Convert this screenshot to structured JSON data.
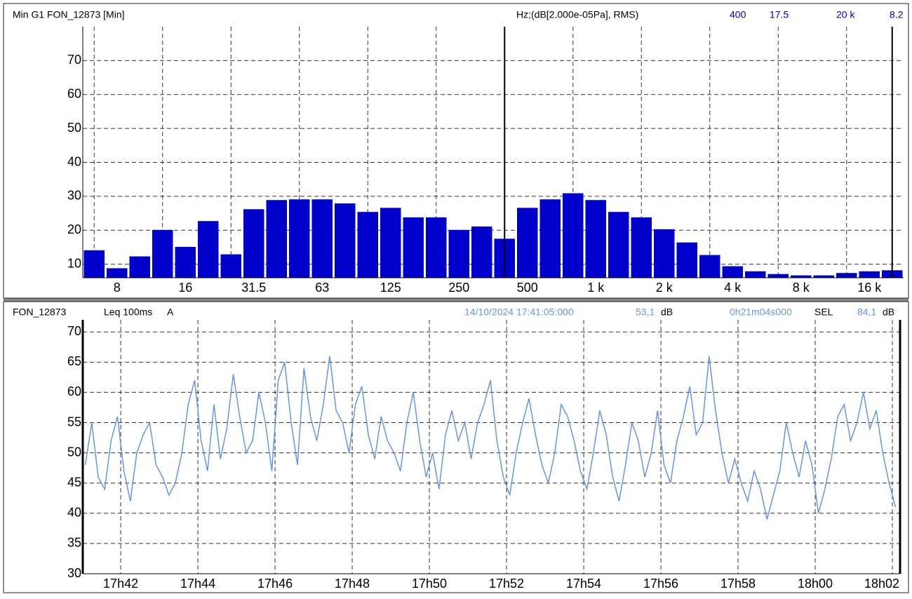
{
  "chart_data": [
    {
      "type": "bar",
      "title": "Min G1 FON_12873 [Min]",
      "axis_info": "Hz;(dB[2.000e-05Pa], RMS)",
      "categories": [
        null,
        "8",
        null,
        null,
        "16",
        null,
        null,
        "31.5",
        null,
        null,
        "63",
        null,
        null,
        "125",
        null,
        null,
        "250",
        null,
        null,
        "500",
        null,
        null,
        "1 k",
        null,
        null,
        "2 k",
        null,
        null,
        "4 k",
        null,
        null,
        "8 k",
        null,
        null,
        "16 k",
        null
      ],
      "values": [
        14.1,
        8.8,
        12.3,
        20.1,
        15.1,
        22.7,
        12.9,
        26.2,
        28.9,
        29.1,
        29.1,
        27.9,
        25.4,
        26.6,
        23.8,
        23.8,
        20.1,
        21.1,
        17.5,
        26.6,
        29.1,
        30.9,
        28.9,
        25.4,
        23.8,
        20.3,
        16.4,
        12.7,
        9.4,
        7.9,
        7.1,
        6.7,
        6.7,
        7.4,
        7.9,
        8.2
      ],
      "color": "#0000cc",
      "ylim": [
        6,
        80
      ],
      "yticks": [
        10,
        20,
        30,
        40,
        50,
        60,
        70
      ],
      "grid": true,
      "cursors": [
        {
          "label": "400",
          "value": 17.5
        },
        {
          "label": "20 k",
          "value": 8.2
        }
      ]
    },
    {
      "type": "line",
      "title": "FON_12873",
      "measure": "Leq 100ms",
      "weighting": "A",
      "start": "14/10/2024 17:41:05:000",
      "leq": "53,1",
      "leq_unit": "dB",
      "duration": "0h21m04s000",
      "sel_label": "SEL",
      "sel": "84,1",
      "sel_unit": "dB",
      "color": "#6495ed",
      "x": [
        2465,
        2475,
        2485,
        2495,
        2505,
        2515,
        2525,
        2535,
        2545,
        2555,
        2565,
        2575,
        2585,
        2595,
        2605,
        2615,
        2625,
        2635,
        2645,
        2655,
        2665,
        2675,
        2685,
        2695,
        2705,
        2715,
        2725,
        2735,
        2745,
        2755,
        2765,
        2775,
        2785,
        2795,
        2805,
        2815,
        2825,
        2835,
        2845,
        2855,
        2865,
        2875,
        2885,
        2895,
        2905,
        2915,
        2925,
        2935,
        2945,
        2955,
        2965,
        2975,
        2985,
        2995,
        3005,
        3015,
        3025,
        3035,
        3045,
        3055,
        3065,
        3075,
        3085,
        3095,
        3105,
        3115,
        3125,
        3135,
        3145,
        3155,
        3165,
        3175,
        3185,
        3195,
        3205,
        3215,
        3225,
        3235,
        3245,
        3255,
        3265,
        3275,
        3285,
        3295,
        3305,
        3315,
        3325,
        3335,
        3345,
        3355,
        3365,
        3375,
        3385,
        3395,
        3405,
        3415,
        3425,
        3435,
        3445,
        3455,
        3465,
        3475,
        3485,
        3495,
        3505,
        3515,
        3525,
        3535,
        3545,
        3555,
        3565,
        3575,
        3585,
        3595,
        3605,
        3615,
        3625,
        3635,
        3645,
        3655,
        3665,
        3675,
        3685,
        3695,
        3705,
        3715,
        3725
      ],
      "values": [
        48,
        55,
        46,
        44,
        52,
        56,
        47,
        42,
        50,
        53,
        55,
        48,
        46,
        43,
        45,
        50,
        58,
        62,
        52,
        47,
        58,
        49,
        54,
        63,
        56,
        50,
        52,
        60,
        55,
        47,
        62,
        65,
        55,
        48,
        64,
        56,
        52,
        58,
        66,
        57,
        55,
        50,
        58,
        61,
        53,
        49,
        56,
        52,
        50,
        47,
        55,
        60,
        52,
        46,
        50,
        44,
        53,
        57,
        52,
        55,
        49,
        55,
        58,
        62,
        52,
        46,
        43,
        50,
        55,
        59,
        53,
        48,
        45,
        50,
        58,
        56,
        52,
        47,
        44,
        50,
        57,
        53,
        46,
        42,
        48,
        55,
        52,
        46,
        50,
        57,
        48,
        45,
        52,
        56,
        61,
        53,
        55,
        66,
        57,
        50,
        45,
        49,
        45,
        42,
        47,
        44,
        39,
        43,
        47,
        55,
        50,
        46,
        52,
        48,
        40,
        44,
        49,
        56,
        58,
        52,
        55,
        60,
        54,
        57,
        50,
        45,
        41
      ],
      "xlim": [
        2461,
        3732
      ],
      "xticks": [
        {
          "value": 2520,
          "label": "17h42"
        },
        {
          "value": 2640,
          "label": "17h44"
        },
        {
          "value": 2760,
          "label": "17h46"
        },
        {
          "value": 2880,
          "label": "17h48"
        },
        {
          "value": 3000,
          "label": "17h50"
        },
        {
          "value": 3120,
          "label": "17h52"
        },
        {
          "value": 3240,
          "label": "17h54"
        },
        {
          "value": 3360,
          "label": "17h56"
        },
        {
          "value": 3480,
          "label": "17h58"
        },
        {
          "value": 3600,
          "label": "18h00"
        },
        {
          "value": 3720,
          "label": "18h02"
        }
      ],
      "ylim": [
        30,
        72
      ],
      "yticks": [
        30,
        35,
        40,
        45,
        50,
        55,
        60,
        65,
        70
      ],
      "grid": true
    }
  ]
}
